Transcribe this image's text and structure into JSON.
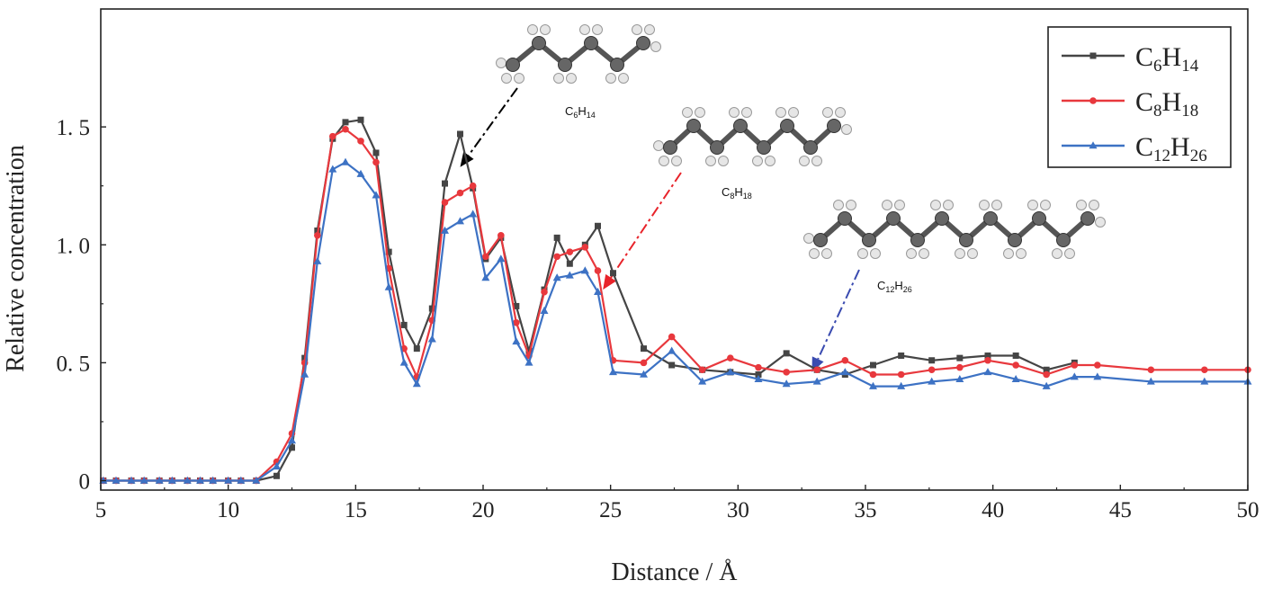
{
  "chart_data": {
    "type": "line",
    "title": "",
    "xlabel": "Distance / Å",
    "ylabel": "Relative concentration",
    "xlim": [
      5,
      50
    ],
    "ylim": [
      -0.04,
      2.0
    ],
    "grid": false,
    "legend_position": "top-right",
    "x_ticks": [
      {
        "value": 5,
        "label": "5"
      },
      {
        "value": 10,
        "label": "10"
      },
      {
        "value": 15,
        "label": "15"
      },
      {
        "value": 20,
        "label": "20"
      },
      {
        "value": 25,
        "label": "25"
      },
      {
        "value": 30,
        "label": "30"
      },
      {
        "value": 35,
        "label": "35"
      },
      {
        "value": 40,
        "label": "40"
      },
      {
        "value": 45,
        "label": "45"
      },
      {
        "value": 50,
        "label": "50"
      }
    ],
    "y_ticks": [
      {
        "value": 0,
        "label": "0"
      },
      {
        "value": 0.5,
        "label": "0. 5"
      },
      {
        "value": 1.0,
        "label": "1. 0"
      },
      {
        "value": 1.5,
        "label": "1. 5"
      }
    ],
    "series": [
      {
        "name": "C6H14",
        "legend": {
          "base": "C",
          "n1": "6",
          "mid": "H",
          "n2": "14"
        },
        "color": "#454545",
        "marker": "square",
        "points": [
          [
            5.1,
            0.0
          ],
          [
            5.6,
            0.0
          ],
          [
            6.2,
            0.0
          ],
          [
            6.7,
            0.0
          ],
          [
            7.3,
            0.0
          ],
          [
            7.8,
            0.0
          ],
          [
            8.4,
            0.0
          ],
          [
            8.9,
            0.0
          ],
          [
            9.4,
            0.0
          ],
          [
            10.0,
            0.0
          ],
          [
            10.5,
            0.0
          ],
          [
            11.1,
            0.0
          ],
          [
            11.9,
            0.02
          ],
          [
            12.5,
            0.14
          ],
          [
            13.0,
            0.52
          ],
          [
            13.5,
            1.06
          ],
          [
            14.1,
            1.45
          ],
          [
            14.6,
            1.52
          ],
          [
            15.2,
            1.53
          ],
          [
            15.8,
            1.39
          ],
          [
            16.3,
            0.97
          ],
          [
            16.9,
            0.66
          ],
          [
            17.4,
            0.56
          ],
          [
            18.0,
            0.73
          ],
          [
            18.5,
            1.26
          ],
          [
            19.1,
            1.47
          ],
          [
            19.6,
            1.24
          ],
          [
            20.1,
            0.94
          ],
          [
            20.7,
            1.03
          ],
          [
            21.3,
            0.74
          ],
          [
            21.8,
            0.55
          ],
          [
            22.4,
            0.81
          ],
          [
            22.9,
            1.03
          ],
          [
            23.4,
            0.92
          ],
          [
            24.0,
            1.0
          ],
          [
            24.5,
            1.08
          ],
          [
            25.1,
            0.88
          ],
          [
            26.3,
            0.56
          ],
          [
            27.4,
            0.49
          ],
          [
            28.6,
            0.47
          ],
          [
            29.7,
            0.46
          ],
          [
            30.8,
            0.45
          ],
          [
            31.9,
            0.54
          ],
          [
            33.1,
            0.47
          ],
          [
            34.2,
            0.45
          ],
          [
            35.3,
            0.49
          ],
          [
            36.4,
            0.53
          ],
          [
            37.6,
            0.51
          ],
          [
            38.7,
            0.52
          ],
          [
            39.8,
            0.53
          ],
          [
            40.9,
            0.53
          ],
          [
            42.1,
            0.47
          ],
          [
            43.2,
            0.5
          ]
        ]
      },
      {
        "name": "C8H18",
        "legend": {
          "base": "C",
          "n1": "8",
          "mid": "H",
          "n2": "18"
        },
        "color": "#e8383d",
        "marker": "circle",
        "points": [
          [
            5.1,
            0.0
          ],
          [
            5.6,
            0.0
          ],
          [
            6.2,
            0.0
          ],
          [
            6.7,
            0.0
          ],
          [
            7.3,
            0.0
          ],
          [
            7.8,
            0.0
          ],
          [
            8.4,
            0.0
          ],
          [
            8.9,
            0.0
          ],
          [
            9.4,
            0.0
          ],
          [
            10.0,
            0.0
          ],
          [
            10.5,
            0.0
          ],
          [
            11.1,
            0.0
          ],
          [
            11.9,
            0.08
          ],
          [
            12.5,
            0.2
          ],
          [
            13.0,
            0.5
          ],
          [
            13.5,
            1.04
          ],
          [
            14.1,
            1.46
          ],
          [
            14.6,
            1.49
          ],
          [
            15.2,
            1.44
          ],
          [
            15.8,
            1.35
          ],
          [
            16.3,
            0.9
          ],
          [
            16.9,
            0.56
          ],
          [
            17.4,
            0.44
          ],
          [
            18.0,
            0.68
          ],
          [
            18.5,
            1.18
          ],
          [
            19.1,
            1.22
          ],
          [
            19.6,
            1.25
          ],
          [
            20.1,
            0.95
          ],
          [
            20.7,
            1.04
          ],
          [
            21.3,
            0.67
          ],
          [
            21.8,
            0.53
          ],
          [
            22.4,
            0.8
          ],
          [
            22.9,
            0.95
          ],
          [
            23.4,
            0.97
          ],
          [
            24.0,
            0.99
          ],
          [
            24.5,
            0.89
          ],
          [
            25.1,
            0.51
          ],
          [
            26.3,
            0.5
          ],
          [
            27.4,
            0.61
          ],
          [
            28.6,
            0.47
          ],
          [
            29.7,
            0.52
          ],
          [
            30.8,
            0.48
          ],
          [
            31.9,
            0.46
          ],
          [
            33.1,
            0.47
          ],
          [
            34.2,
            0.51
          ],
          [
            35.3,
            0.45
          ],
          [
            36.4,
            0.45
          ],
          [
            37.6,
            0.47
          ],
          [
            38.7,
            0.48
          ],
          [
            39.8,
            0.51
          ],
          [
            40.9,
            0.49
          ],
          [
            42.1,
            0.45
          ],
          [
            43.2,
            0.49
          ],
          [
            44.1,
            0.49
          ],
          [
            46.2,
            0.47
          ],
          [
            48.3,
            0.47
          ],
          [
            50.0,
            0.47
          ]
        ]
      },
      {
        "name": "C12H26",
        "legend": {
          "base": "C",
          "n1": "12",
          "mid": "H",
          "n2": "26"
        },
        "color": "#3d72c4",
        "marker": "triangle",
        "points": [
          [
            5.1,
            0.0
          ],
          [
            5.6,
            0.0
          ],
          [
            6.2,
            0.0
          ],
          [
            6.7,
            0.0
          ],
          [
            7.3,
            0.0
          ],
          [
            7.8,
            0.0
          ],
          [
            8.4,
            0.0
          ],
          [
            8.9,
            0.0
          ],
          [
            9.4,
            0.0
          ],
          [
            10.0,
            0.0
          ],
          [
            10.5,
            0.0
          ],
          [
            11.1,
            0.0
          ],
          [
            11.9,
            0.06
          ],
          [
            12.5,
            0.17
          ],
          [
            13.0,
            0.45
          ],
          [
            13.5,
            0.93
          ],
          [
            14.1,
            1.32
          ],
          [
            14.6,
            1.35
          ],
          [
            15.2,
            1.3
          ],
          [
            15.8,
            1.21
          ],
          [
            16.3,
            0.82
          ],
          [
            16.9,
            0.5
          ],
          [
            17.4,
            0.41
          ],
          [
            18.0,
            0.6
          ],
          [
            18.5,
            1.06
          ],
          [
            19.1,
            1.1
          ],
          [
            19.6,
            1.13
          ],
          [
            20.1,
            0.86
          ],
          [
            20.7,
            0.94
          ],
          [
            21.3,
            0.59
          ],
          [
            21.8,
            0.5
          ],
          [
            22.4,
            0.72
          ],
          [
            22.9,
            0.86
          ],
          [
            23.4,
            0.87
          ],
          [
            24.0,
            0.89
          ],
          [
            24.5,
            0.8
          ],
          [
            25.1,
            0.46
          ],
          [
            26.3,
            0.45
          ],
          [
            27.4,
            0.55
          ],
          [
            28.6,
            0.42
          ],
          [
            29.7,
            0.46
          ],
          [
            30.8,
            0.43
          ],
          [
            31.9,
            0.41
          ],
          [
            33.1,
            0.42
          ],
          [
            34.2,
            0.46
          ],
          [
            35.3,
            0.4
          ],
          [
            36.4,
            0.4
          ],
          [
            37.6,
            0.42
          ],
          [
            38.7,
            0.43
          ],
          [
            39.8,
            0.46
          ],
          [
            40.9,
            0.43
          ],
          [
            42.1,
            0.4
          ],
          [
            43.2,
            0.44
          ],
          [
            44.1,
            0.44
          ],
          [
            46.2,
            0.42
          ],
          [
            48.3,
            0.42
          ],
          [
            50.0,
            0.42
          ]
        ]
      }
    ],
    "annotations": [
      {
        "name": "C6H14",
        "label": {
          "base": "C",
          "n1": "6",
          "mid": "H",
          "n2": "14"
        },
        "color": "#000000",
        "carbons": 6,
        "target": [
          19.1,
          1.33
        ]
      },
      {
        "name": "C8H18",
        "label": {
          "base": "C",
          "n1": "8",
          "mid": "H",
          "n2": "18"
        },
        "color": "#e8232a",
        "carbons": 8,
        "target": [
          24.7,
          0.81
        ]
      },
      {
        "name": "C12H26",
        "label": {
          "base": "C",
          "n1": "12",
          "mid": "H",
          "n2": "26"
        },
        "color": "#3a4bb0",
        "carbons": 12,
        "target": [
          32.9,
          0.46
        ]
      }
    ]
  }
}
